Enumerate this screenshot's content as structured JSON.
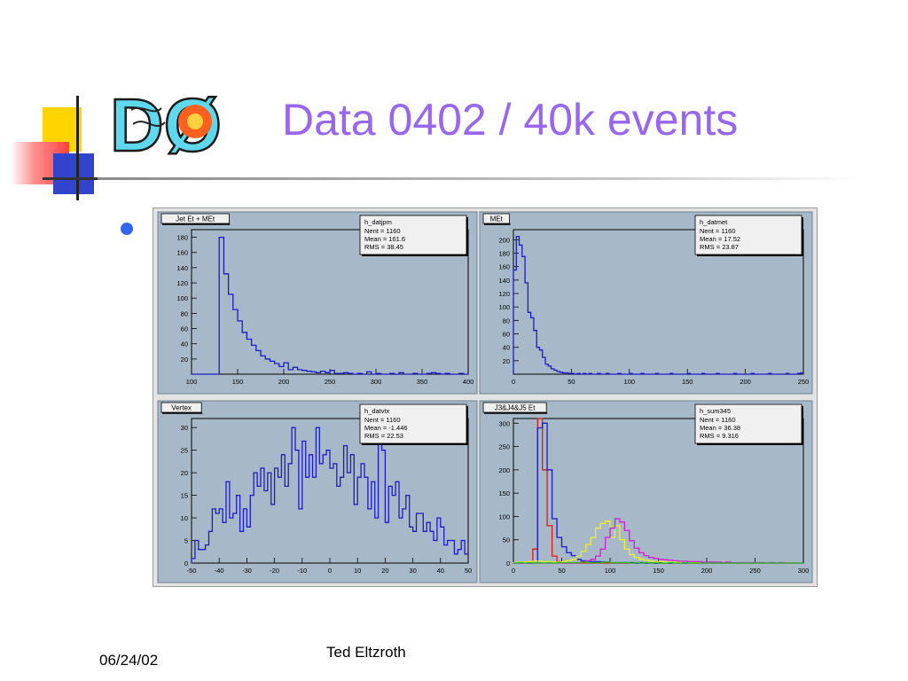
{
  "slide": {
    "title": "Data 0402 / 40k events",
    "footer_date": "06/24/02",
    "footer_author": "Ted Eltzroth",
    "logo_text": "DØ"
  },
  "colors": {
    "title": "#9966ee",
    "bullet": "#3366ee",
    "plot_background": "#a7b8c8",
    "blue_series": "#1c1cc8",
    "red_series": "#e01818",
    "yellow_series": "#f0f028",
    "magenta_series": "#d020d0",
    "green_series": "#20c020"
  },
  "chart_data": [
    {
      "type": "bar",
      "title": "Jet Et + MEt",
      "stats": {
        "name": "h_datjpm",
        "lines": [
          "Nent = 1160",
          "Mean =  161.6",
          "RMS  =  38.45"
        ]
      },
      "xlim": [
        100,
        400
      ],
      "ylim": [
        0,
        190
      ],
      "xticks": [
        100,
        150,
        200,
        250,
        300,
        350,
        400
      ],
      "yticks": [
        20,
        40,
        60,
        80,
        100,
        120,
        140,
        160,
        180
      ],
      "series": [
        {
          "color": "#1c1cc8",
          "x_start": 100,
          "bin_width": 5,
          "values": [
            0,
            0,
            0,
            0,
            0,
            0,
            180,
            132,
            105,
            85,
            70,
            55,
            46,
            38,
            31,
            24,
            20,
            17,
            14,
            10,
            15,
            6,
            9,
            6,
            5,
            4,
            3,
            2,
            4,
            2,
            5,
            1,
            1,
            2,
            1,
            0,
            1,
            0,
            3,
            0,
            1,
            0,
            0,
            1,
            0,
            2,
            0,
            0,
            1,
            0,
            0,
            1,
            2,
            1,
            0,
            1,
            0,
            0,
            1,
            0
          ]
        }
      ]
    },
    {
      "type": "bar",
      "title": "MEt",
      "stats": {
        "name": "h_datmet",
        "lines": [
          "Nent = 1160",
          "Mean =  17.52",
          "RMS  =  23.87"
        ]
      },
      "xlim": [
        0,
        250
      ],
      "ylim": [
        0,
        215
      ],
      "xticks": [
        0,
        50,
        100,
        150,
        200,
        250
      ],
      "yticks": [
        20,
        40,
        60,
        80,
        100,
        120,
        140,
        160,
        180,
        200
      ],
      "series": [
        {
          "color": "#1c1cc8",
          "x_start": 0,
          "bin_width": 2.5,
          "values": [
            155,
            205,
            192,
            175,
            136,
            92,
            84,
            65,
            40,
            36,
            25,
            15,
            12,
            8,
            6,
            4,
            3,
            2,
            2,
            1,
            1,
            0,
            1,
            0,
            1,
            0,
            1,
            0,
            0,
            1,
            0,
            0,
            1,
            0,
            0,
            0,
            1,
            0,
            0,
            0,
            1,
            0,
            0,
            0,
            1,
            0,
            0,
            0,
            0,
            1,
            0,
            0,
            0,
            0,
            1,
            0,
            0,
            0,
            0,
            0,
            1,
            0,
            0,
            0,
            0,
            1,
            0,
            0,
            0,
            0,
            1,
            0,
            0,
            0,
            0,
            0,
            1,
            0,
            0,
            0,
            0,
            0,
            1,
            0,
            0,
            0,
            0,
            0,
            1,
            0,
            0,
            0,
            0,
            0,
            1,
            0,
            0,
            0,
            1,
            2
          ]
        }
      ]
    },
    {
      "type": "bar",
      "title": "Vertex",
      "stats": {
        "name": "h_datvtx",
        "lines": [
          "Nent = 1160",
          "Mean = -1.446",
          "RMS  =  22.53"
        ]
      },
      "xlim": [
        -50,
        50
      ],
      "ylim": [
        0,
        32
      ],
      "xticks": [
        -50,
        -40,
        -30,
        -20,
        -10,
        0,
        10,
        20,
        30,
        40,
        50
      ],
      "yticks": [
        0,
        5,
        10,
        15,
        20,
        25,
        30
      ],
      "series": [
        {
          "color": "#1c1cc8",
          "x_start": -50,
          "bin_width": 1.25,
          "values": [
            1,
            5,
            3,
            3,
            4,
            7,
            12,
            11,
            12,
            9,
            18,
            10,
            11,
            15,
            7,
            12,
            8,
            15,
            20,
            17,
            21,
            16,
            20,
            13,
            21,
            19,
            24,
            17,
            22,
            30,
            25,
            12,
            27,
            19,
            24,
            19,
            30,
            22,
            24,
            25,
            21,
            22,
            17,
            19,
            26,
            20,
            24,
            13,
            19,
            22,
            19,
            12,
            18,
            10,
            27,
            25,
            9,
            17,
            15,
            18,
            10,
            12,
            15,
            8,
            7,
            11,
            11,
            7,
            9,
            7,
            5,
            10,
            8,
            4,
            5,
            5,
            2,
            3,
            5,
            2
          ]
        }
      ]
    },
    {
      "type": "line",
      "title": "J3&J4&J5 Et",
      "stats": {
        "name": "h_sum345",
        "lines": [
          "Nent = 1160",
          "Mean =  36.38",
          "RMS  =  9.316"
        ]
      },
      "xlim": [
        0,
        300
      ],
      "ylim": [
        0,
        310
      ],
      "xticks": [
        0,
        50,
        100,
        150,
        200,
        250,
        300
      ],
      "yticks": [
        0,
        50,
        100,
        150,
        200,
        250,
        300
      ],
      "series": [
        {
          "color": "#e01818",
          "x_start": 0,
          "bin_width": 5,
          "values": [
            0,
            0,
            0,
            0,
            30,
            310,
            200,
            80,
            15,
            3,
            0,
            0,
            0,
            0,
            0,
            0,
            0,
            0,
            0,
            0,
            0,
            0,
            0,
            0,
            0,
            0,
            0,
            0,
            0,
            0,
            0,
            0,
            0,
            0,
            0,
            0,
            0,
            0,
            0,
            0,
            0,
            0,
            0,
            0,
            0,
            0,
            0,
            0,
            0,
            0,
            0,
            0,
            0,
            0,
            0,
            0,
            0,
            0,
            0,
            0
          ]
        },
        {
          "color": "#1c1cc8",
          "x_start": 0,
          "bin_width": 5,
          "values": [
            0,
            0,
            0,
            0,
            0,
            290,
            300,
            200,
            95,
            55,
            35,
            22,
            16,
            8,
            5,
            4,
            3,
            3,
            2,
            2,
            1,
            1,
            1,
            1,
            1,
            0,
            1,
            0,
            0,
            0,
            1,
            0,
            0,
            0,
            0,
            0,
            0,
            0,
            0,
            0,
            0,
            0,
            0,
            0,
            0,
            0,
            0,
            0,
            0,
            0,
            0,
            0,
            0,
            0,
            0,
            0,
            0,
            0,
            0,
            0
          ]
        },
        {
          "color": "#f0f028",
          "x_start": 0,
          "bin_width": 5,
          "values": [
            1,
            2,
            2,
            3,
            4,
            4,
            3,
            3,
            2,
            2,
            3,
            5,
            8,
            15,
            25,
            40,
            55,
            75,
            85,
            90,
            55,
            80,
            50,
            30,
            18,
            12,
            8,
            6,
            4,
            3,
            3,
            2,
            2,
            2,
            1,
            1,
            1,
            1,
            1,
            1,
            0,
            1,
            0,
            1,
            0,
            0,
            1,
            0,
            0,
            1,
            0,
            0,
            0,
            0,
            0,
            0,
            0,
            0,
            0,
            0
          ]
        },
        {
          "color": "#d020d0",
          "x_start": 0,
          "bin_width": 5,
          "values": [
            0,
            0,
            0,
            0,
            0,
            0,
            0,
            0,
            0,
            0,
            0,
            0,
            0,
            1,
            3,
            5,
            8,
            15,
            30,
            55,
            75,
            95,
            88,
            70,
            48,
            32,
            22,
            16,
            12,
            10,
            8,
            7,
            6,
            5,
            4,
            4,
            3,
            3,
            3,
            2,
            2,
            2,
            2,
            1,
            2,
            1,
            1,
            1,
            1,
            1,
            1,
            1,
            0,
            1,
            0,
            1,
            0,
            0,
            0,
            0
          ]
        },
        {
          "color": "#20c020",
          "x_start": 0,
          "bin_width": 5,
          "values": [
            0,
            1,
            0,
            1,
            0,
            1,
            0,
            1,
            0,
            1,
            1,
            1,
            1,
            1,
            2,
            1,
            1,
            1,
            1,
            2,
            1,
            1,
            1,
            1,
            0,
            1,
            0,
            1,
            0,
            1,
            0,
            0,
            1,
            0,
            0,
            1,
            0,
            0,
            0,
            0,
            0,
            0,
            0,
            0,
            0,
            0,
            0,
            0,
            0,
            0,
            0,
            0,
            0,
            0,
            0,
            0,
            0,
            0,
            0,
            0
          ]
        }
      ]
    }
  ]
}
